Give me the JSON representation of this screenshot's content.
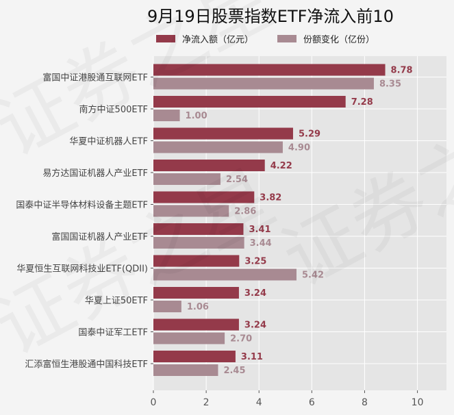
{
  "chart_data": {
    "type": "bar",
    "orientation": "horizontal",
    "title": "9月19日股票指数ETF净流入前10",
    "categories": [
      "富国中证港股通互联网ETF",
      "南方中证500ETF",
      "华夏中证机器人ETF",
      "易方达国证机器人产业ETF",
      "国泰中证半导体材料设备主题ETF",
      "富国国证机器人产业ETF",
      "华夏恒生互联网科技业ETF(QDII)",
      "华夏上证50ETF",
      "国泰中证军工ETF",
      "汇添富恒生港股通中国科技ETF"
    ],
    "series": [
      {
        "name": "净流入额（亿元）",
        "color": "#943a4a",
        "values": [
          8.78,
          7.28,
          5.29,
          4.22,
          3.82,
          3.41,
          3.25,
          3.24,
          3.24,
          3.11
        ],
        "labels": [
          "8.78",
          "7.28",
          "5.29",
          "4.22",
          "3.82",
          "3.41",
          "3.25",
          "3.24",
          "3.24",
          "3.11"
        ]
      },
      {
        "name": "份额变化（亿份）",
        "color": "#a88a92",
        "values": [
          8.35,
          1.0,
          4.9,
          2.54,
          2.86,
          3.44,
          5.42,
          1.06,
          2.7,
          2.45
        ],
        "labels": [
          "8.35",
          "1.00",
          "4.90",
          "2.54",
          "2.86",
          "3.44",
          "5.42",
          "1.06",
          "2.70",
          "2.45"
        ]
      }
    ],
    "xlim": [
      0,
      11.1
    ],
    "xticks": [
      "0",
      "2",
      "4",
      "6",
      "8",
      "10"
    ],
    "xlabel": "",
    "ylabel": "",
    "grid": true,
    "legend_position": "top"
  },
  "watermark": "证券之星"
}
